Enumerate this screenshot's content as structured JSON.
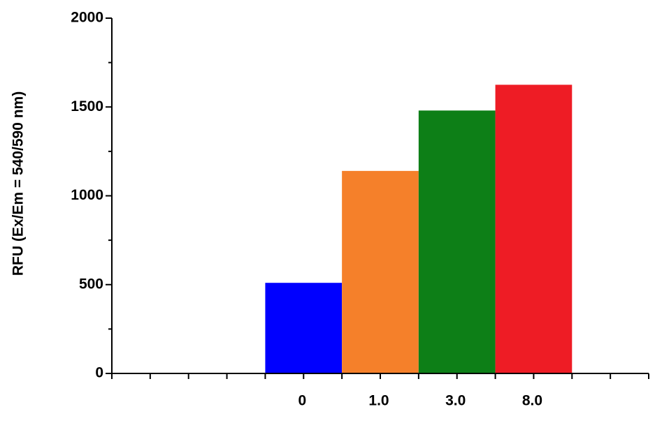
{
  "chart_data": {
    "type": "bar",
    "y_label": "RFU (Ex/Em = 540/590 nm)",
    "categories": [
      null,
      null,
      "0",
      "1.0",
      "3.0",
      "8.0",
      null
    ],
    "series": [
      {
        "values": [
          null,
          null,
          510,
          1140,
          1480,
          1625,
          null
        ],
        "colors": [
          null,
          null,
          "#0000ff",
          "#f5802a",
          "#0d7f17",
          "#ee1c25",
          null
        ]
      }
    ],
    "ylim": [
      0,
      2000
    ],
    "yticks": [
      0,
      500,
      1000,
      1500,
      2000
    ]
  }
}
